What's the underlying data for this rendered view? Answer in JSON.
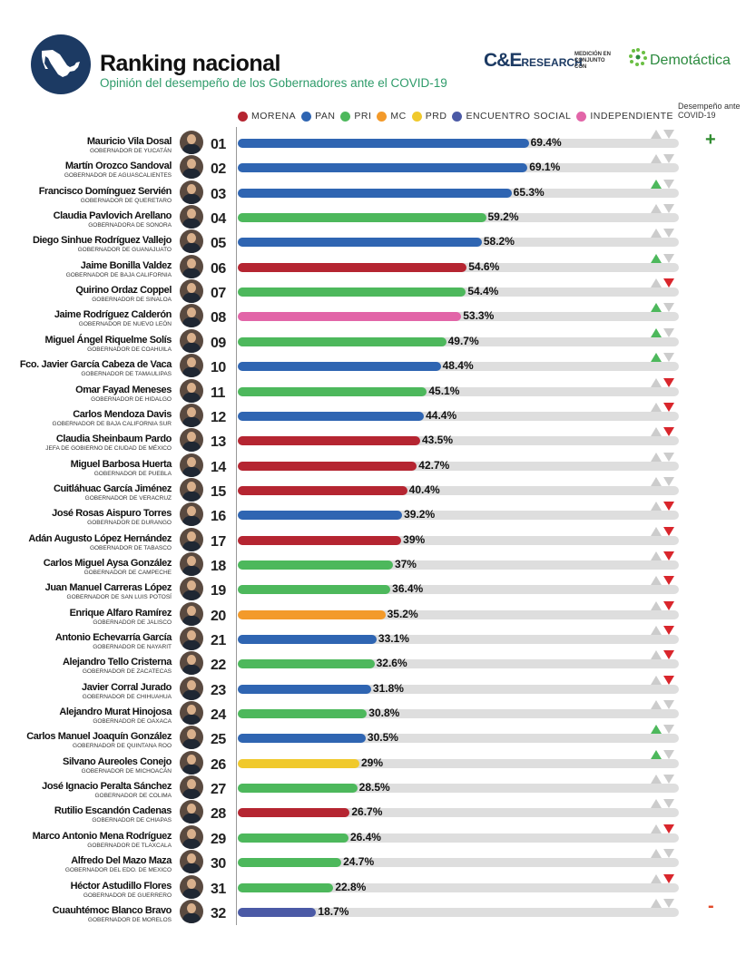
{
  "header": {
    "title": "Ranking nacional",
    "subtitle": "Opinión del desempeño de los Gobernadores ante el COVID-19",
    "brand_main": "C&E",
    "brand_sub": "RESEARCH",
    "measure_note": "MEDICIÓN EN CONJUNTO CON",
    "partner": "Demotáctica"
  },
  "trend_header": "Desempeño ante COVID-19",
  "trend_markers": {
    "best": "+",
    "worst": "-"
  },
  "colors": {
    "MORENA": "#b52531",
    "PAN": "#2f65b2",
    "PRI": "#4db85c",
    "MC": "#f39a2a",
    "PRD": "#f0c92c",
    "ENCUENTRO SOCIAL": "#4b5aa6",
    "INDEPENDIENTE": "#e265a8",
    "arrow_up": "#4db85c",
    "arrow_down": "#d9262c",
    "arrow_neutral": "#c8c8c8"
  },
  "chart_data": {
    "type": "bar",
    "orientation": "horizontal",
    "xlim": [
      0,
      100
    ],
    "legend": [
      "MORENA",
      "PAN",
      "PRI",
      "MC",
      "PRD",
      "ENCUENTRO SOCIAL",
      "INDEPENDIENTE"
    ],
    "legend_position": "top",
    "rows": [
      {
        "rank": "01",
        "name": "Mauricio Vila Dosal",
        "title": "GOBERNADOR DE YUCATÁN",
        "party": "PAN",
        "value": 69.4,
        "label": "69.4%",
        "trend": "neutral"
      },
      {
        "rank": "02",
        "name": "Martín Orozco Sandoval",
        "title": "GOBERNADOR DE AGUASCALIENTES",
        "party": "PAN",
        "value": 69.1,
        "label": "69.1%",
        "trend": "neutral"
      },
      {
        "rank": "03",
        "name": "Francisco Domínguez Servién",
        "title": "GOBERNADOR DE QUERETARO",
        "party": "PAN",
        "value": 65.3,
        "label": "65.3%",
        "trend": "up"
      },
      {
        "rank": "04",
        "name": "Claudia Pavlovich Arellano",
        "title": "GOBERNADORA DE SONORA",
        "party": "PRI",
        "value": 59.2,
        "label": "59.2%",
        "trend": "neutral"
      },
      {
        "rank": "05",
        "name": "Diego Sinhue Rodríguez Vallejo",
        "title": "GOBERNADOR DE GUANAJUATO",
        "party": "PAN",
        "value": 58.2,
        "label": "58.2%",
        "trend": "neutral"
      },
      {
        "rank": "06",
        "name": "Jaime Bonilla Valdez",
        "title": "GOBERNADOR DE BAJA CALIFORNIA",
        "party": "MORENA",
        "value": 54.6,
        "label": "54.6%",
        "trend": "up"
      },
      {
        "rank": "07",
        "name": "Quirino Ordaz Coppel",
        "title": "GOBERNADOR DE SINALOA",
        "party": "PRI",
        "value": 54.4,
        "label": "54.4%",
        "trend": "down"
      },
      {
        "rank": "08",
        "name": "Jaime Rodríguez Calderón",
        "title": "GOBERNADOR DE NUEVO LEÓN",
        "party": "INDEPENDIENTE",
        "value": 53.3,
        "label": "53.3%",
        "trend": "up"
      },
      {
        "rank": "09",
        "name": "Miguel Ángel Riquelme Solís",
        "title": "GOBERNADOR DE COAHUILA",
        "party": "PRI",
        "value": 49.7,
        "label": "49.7%",
        "trend": "up"
      },
      {
        "rank": "10",
        "name": "Fco. Javier García Cabeza de Vaca",
        "title": "GOBERNADOR DE TAMAULIPAS",
        "party": "PAN",
        "value": 48.4,
        "label": "48.4%",
        "trend": "up"
      },
      {
        "rank": "11",
        "name": "Omar Fayad Meneses",
        "title": "GOBERNADOR DE HIDALGO",
        "party": "PRI",
        "value": 45.1,
        "label": "45.1%",
        "trend": "down"
      },
      {
        "rank": "12",
        "name": "Carlos Mendoza Davis",
        "title": "GOBERNADOR DE BAJA CALIFORNIA SUR",
        "party": "PAN",
        "value": 44.4,
        "label": "44.4%",
        "trend": "down"
      },
      {
        "rank": "13",
        "name": "Claudia Sheinbaum Pardo",
        "title": "JEFA DE GOBIERNO DE CIUDAD DE MÉXICO",
        "party": "MORENA",
        "value": 43.5,
        "label": "43.5%",
        "trend": "down"
      },
      {
        "rank": "14",
        "name": "Miguel Barbosa Huerta",
        "title": "GOBERNADOR DE PUEBLA",
        "party": "MORENA",
        "value": 42.7,
        "label": "42.7%",
        "trend": "neutral"
      },
      {
        "rank": "15",
        "name": "Cuitláhuac García Jiménez",
        "title": "GOBERNADOR DE VERACRUZ",
        "party": "MORENA",
        "value": 40.4,
        "label": "40.4%",
        "trend": "neutral"
      },
      {
        "rank": "16",
        "name": "José Rosas Aispuro Torres",
        "title": "GOBERNADOR DE DURANGO",
        "party": "PAN",
        "value": 39.2,
        "label": "39.2%",
        "trend": "down"
      },
      {
        "rank": "17",
        "name": "Adán Augusto López Hernández",
        "title": "GOBERNADOR DE TABASCO",
        "party": "MORENA",
        "value": 39,
        "label": "39%",
        "trend": "down"
      },
      {
        "rank": "18",
        "name": "Carlos Miguel Aysa González",
        "title": "GOBERNADOR DE CAMPECHE",
        "party": "PRI",
        "value": 37,
        "label": "37%",
        "trend": "down"
      },
      {
        "rank": "19",
        "name": "Juan Manuel Carreras López",
        "title": "GOBERNADOR DE SAN LUIS POTOSÍ",
        "party": "PRI",
        "value": 36.4,
        "label": "36.4%",
        "trend": "down"
      },
      {
        "rank": "20",
        "name": "Enrique Alfaro Ramírez",
        "title": "GOBERNADOR DE JALISCO",
        "party": "MC",
        "value": 35.2,
        "label": "35.2%",
        "trend": "down"
      },
      {
        "rank": "21",
        "name": "Antonio Echevarría García",
        "title": "GOBERNADOR DE NAYARIT",
        "party": "PAN",
        "value": 33.1,
        "label": "33.1%",
        "trend": "down"
      },
      {
        "rank": "22",
        "name": "Alejandro Tello Cristerna",
        "title": "GOBERNADOR DE ZACATECAS",
        "party": "PRI",
        "value": 32.6,
        "label": "32.6%",
        "trend": "down"
      },
      {
        "rank": "23",
        "name": "Javier Corral Jurado",
        "title": "GOBERNADOR DE CHIHUAHUA",
        "party": "PAN",
        "value": 31.8,
        "label": "31.8%",
        "trend": "down"
      },
      {
        "rank": "24",
        "name": "Alejandro Murat Hinojosa",
        "title": "GOBERNADOR DE OAXACA",
        "party": "PRI",
        "value": 30.8,
        "label": "30.8%",
        "trend": "neutral"
      },
      {
        "rank": "25",
        "name": "Carlos Manuel Joaquín González",
        "title": "GOBERNADOR DE QUINTANA ROO",
        "party": "PAN",
        "value": 30.5,
        "label": "30.5%",
        "trend": "up"
      },
      {
        "rank": "26",
        "name": "Silvano Aureoles Conejo",
        "title": "GOBERNADOR DE MICHOACÁN",
        "party": "PRD",
        "value": 29,
        "label": "29%",
        "trend": "up"
      },
      {
        "rank": "27",
        "name": "José Ignacio Peralta Sánchez",
        "title": "GOBERNADOR DE COLIMA",
        "party": "PRI",
        "value": 28.5,
        "label": "28.5%",
        "trend": "neutral"
      },
      {
        "rank": "28",
        "name": "Rutilio Escandón Cadenas",
        "title": "GOBERNADOR DE CHIAPAS",
        "party": "MORENA",
        "value": 26.7,
        "label": "26.7%",
        "trend": "neutral"
      },
      {
        "rank": "29",
        "name": "Marco Antonio Mena Rodríguez",
        "title": "GOBERNADOR DE TLAXCALA",
        "party": "PRI",
        "value": 26.4,
        "label": "26.4%",
        "trend": "down"
      },
      {
        "rank": "30",
        "name": "Alfredo Del Mazo Maza",
        "title": "GOBERNADOR DEL EDO. DE MEXICO",
        "party": "PRI",
        "value": 24.7,
        "label": "24.7%",
        "trend": "neutral"
      },
      {
        "rank": "31",
        "name": "Héctor Astudillo Flores",
        "title": "GOBERNADOR DE GUERRERO",
        "party": "PRI",
        "value": 22.8,
        "label": "22.8%",
        "trend": "down"
      },
      {
        "rank": "32",
        "name": "Cuauhtémoc Blanco Bravo",
        "title": "GOBERNADOR DE MORELOS",
        "party": "ENCUENTRO SOCIAL",
        "value": 18.7,
        "label": "18.7%",
        "trend": "neutral"
      }
    ]
  }
}
